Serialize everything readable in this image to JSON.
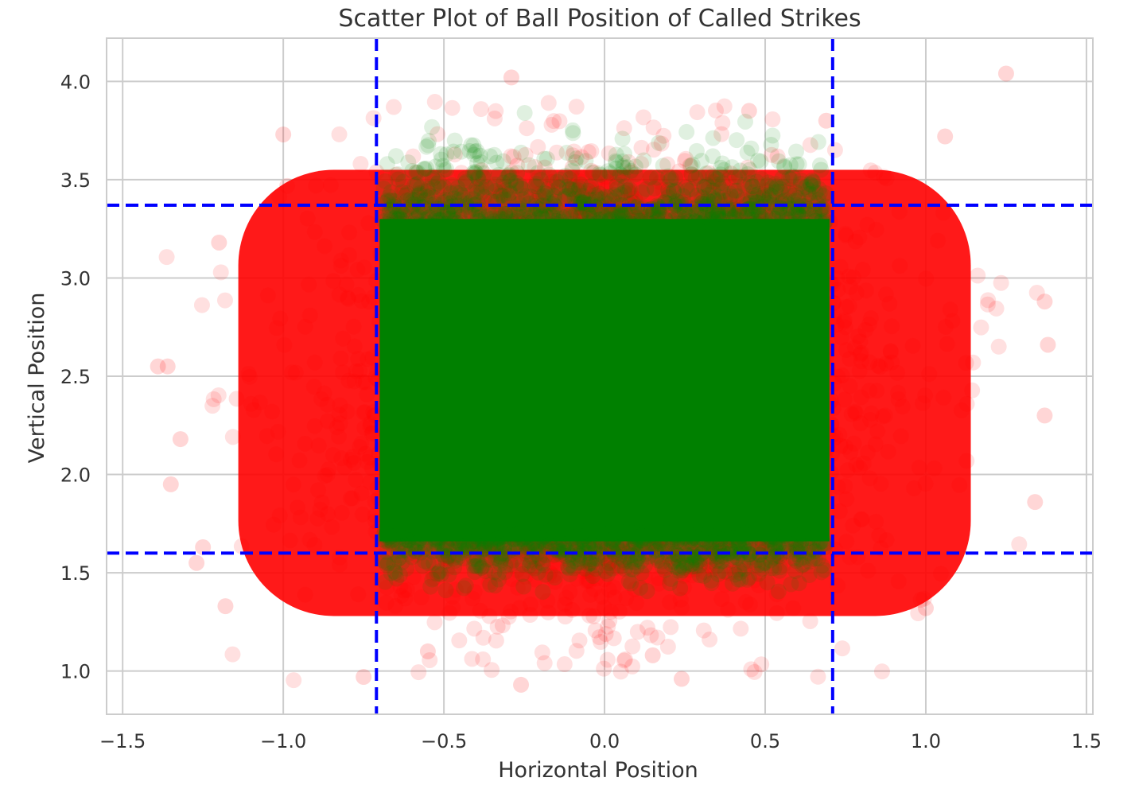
{
  "chart_data": {
    "type": "scatter",
    "title": "Scatter Plot of Ball Position of Called Strikes",
    "xlabel": "Horizontal Position",
    "ylabel": "Vertical Position",
    "xlim": [
      -1.55,
      1.52
    ],
    "ylim": [
      0.78,
      4.22
    ],
    "xticks": [
      -1.5,
      -1.0,
      -0.5,
      0.0,
      0.5,
      1.0,
      1.5
    ],
    "xtick_labels": [
      "−1.5",
      "−1.0",
      "−0.5",
      "0.0",
      "0.5",
      "1.0",
      "1.5"
    ],
    "yticks": [
      1.0,
      1.5,
      2.0,
      2.5,
      3.0,
      3.5,
      4.0
    ],
    "ytick_labels": [
      "1.0",
      "1.5",
      "2.0",
      "2.5",
      "3.0",
      "3.5",
      "4.0"
    ],
    "grid": true,
    "strike_zone": {
      "x_left": -0.71,
      "x_right": 0.71,
      "y_bottom": 1.6,
      "y_top": 3.37,
      "line_color": "#0000ff",
      "line_style": "dashed"
    },
    "series": [
      {
        "color": "#ff0000",
        "alpha": 0.12,
        "region": "outside strike zone",
        "x_extent": [
          -1.4,
          1.38
        ],
        "y_extent": [
          0.93,
          4.04
        ],
        "outliers": [
          [
            -1.39,
            2.55
          ],
          [
            -1.36,
            2.55
          ],
          [
            -1.35,
            1.95
          ],
          [
            -1.32,
            2.18
          ],
          [
            -1.27,
            1.55
          ],
          [
            -1.25,
            1.63
          ],
          [
            -1.2,
            3.18
          ],
          [
            -1.18,
            1.33
          ],
          [
            -0.55,
            1.1
          ],
          [
            -0.75,
            0.97
          ],
          [
            -0.26,
            0.93
          ],
          [
            0.24,
            0.96
          ],
          [
            0.15,
            1.08
          ],
          [
            1.25,
            4.04
          ],
          [
            -0.29,
            4.02
          ],
          [
            1.37,
            2.88
          ],
          [
            1.38,
            2.66
          ],
          [
            1.37,
            2.3
          ],
          [
            1.34,
            1.86
          ],
          [
            1.0,
            1.32
          ],
          [
            1.06,
            3.72
          ],
          [
            -1.0,
            3.73
          ],
          [
            0.69,
            3.8
          ],
          [
            0.45,
            3.85
          ]
        ]
      },
      {
        "color": "#008000",
        "alpha": 0.12,
        "region": "inside strike zone",
        "x_extent": [
          -0.7,
          0.7
        ],
        "y_extent": [
          1.4,
          3.85
        ]
      }
    ]
  }
}
